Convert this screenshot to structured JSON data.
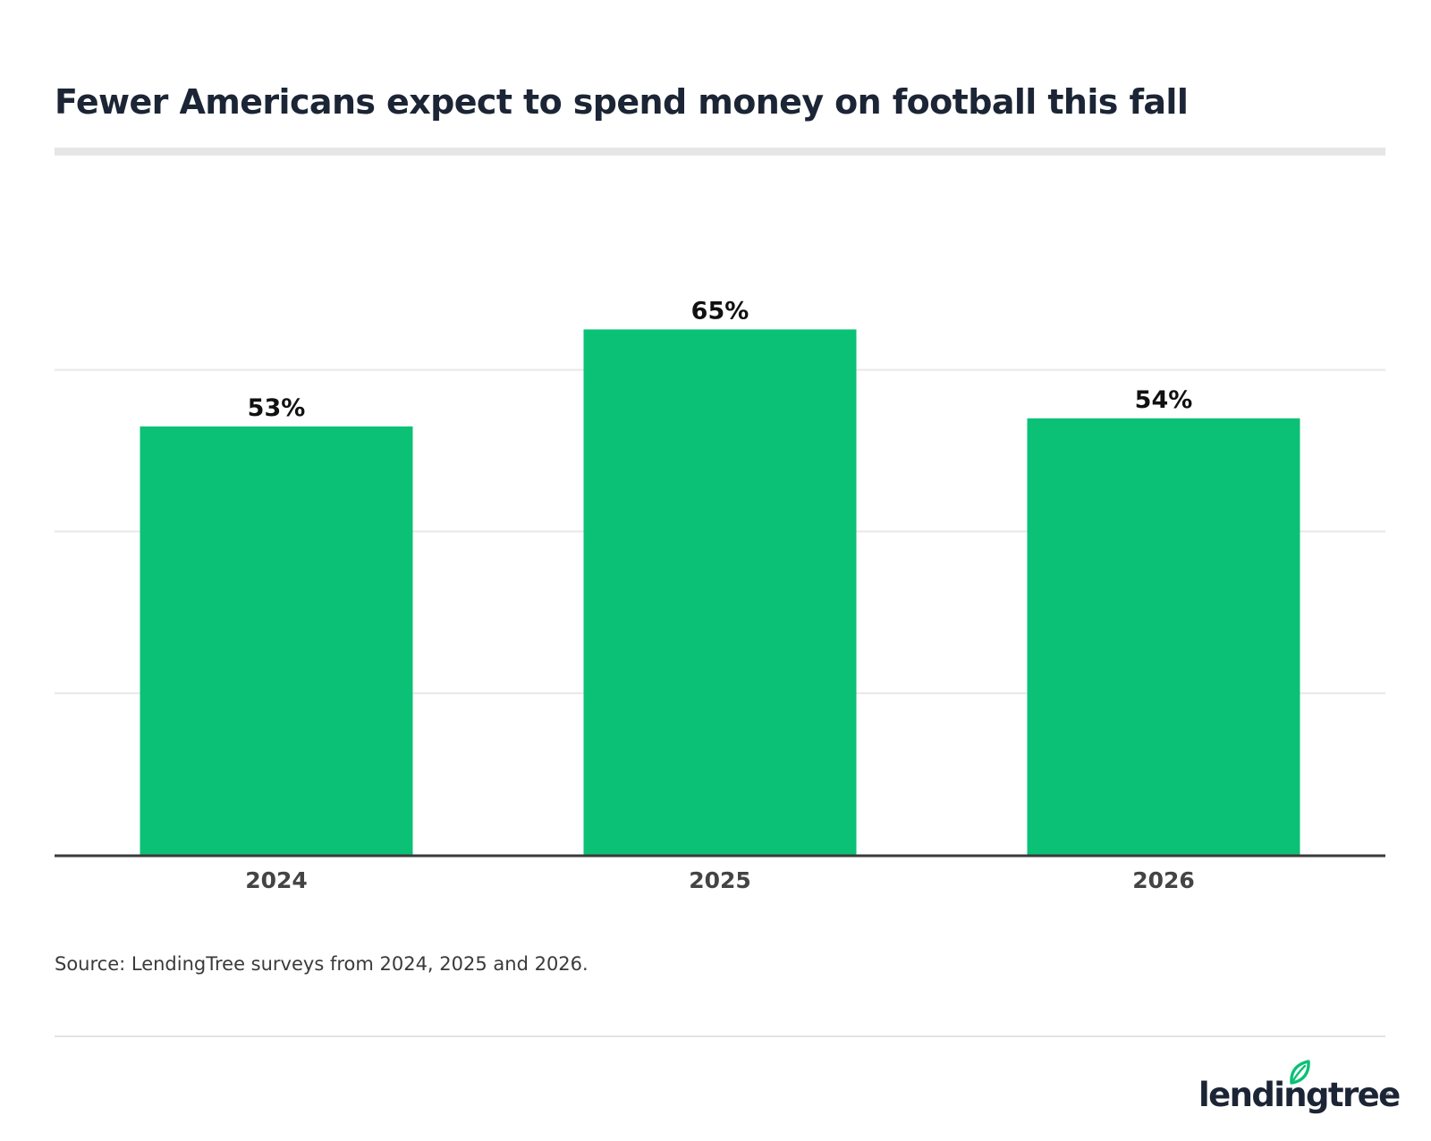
{
  "chart_data": {
    "type": "bar",
    "title": "Fewer Americans expect to spend money on football this fall",
    "categories": [
      "2024",
      "2025",
      "2026"
    ],
    "values": [
      53,
      65,
      54
    ],
    "value_labels": [
      "53%",
      "65%",
      "54%"
    ],
    "ylim": [
      0,
      75
    ],
    "grid": true,
    "bar_color": "#0bc176",
    "source": "Source: LendingTree surveys from 2024, 2025 and 2026."
  },
  "brand": {
    "name": "lendingtree",
    "registered": "®",
    "leaf_color": "#0bc176",
    "text_color": "#1b2535"
  }
}
